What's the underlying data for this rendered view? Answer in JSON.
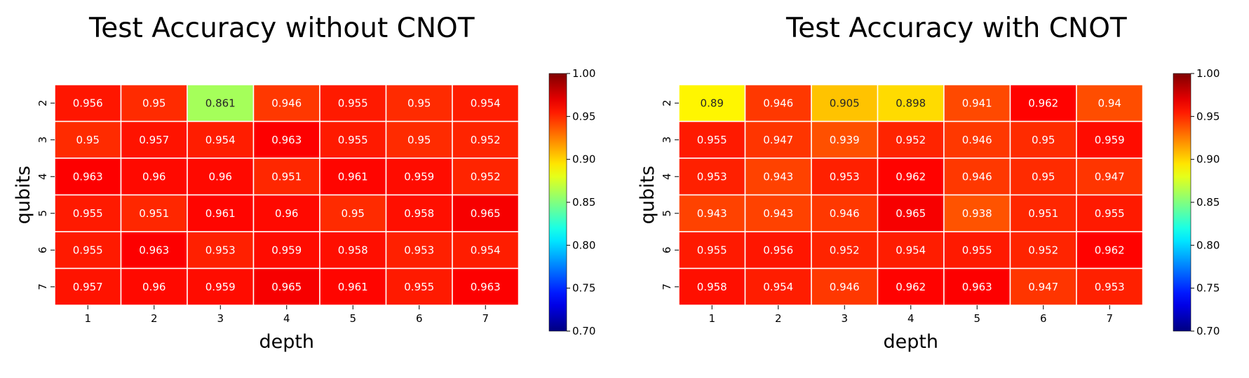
{
  "chart_data": [
    {
      "type": "heatmap",
      "title": "Test Accuracy without CNOT",
      "xlabel": "depth",
      "ylabel": "qubits",
      "x": [
        "1",
        "2",
        "3",
        "4",
        "5",
        "6",
        "7"
      ],
      "y": [
        "2",
        "3",
        "4",
        "5",
        "6",
        "7"
      ],
      "values": [
        [
          0.956,
          0.95,
          0.861,
          0.946,
          0.955,
          0.95,
          0.954
        ],
        [
          0.95,
          0.957,
          0.954,
          0.963,
          0.955,
          0.95,
          0.952
        ],
        [
          0.963,
          0.96,
          0.96,
          0.951,
          0.961,
          0.959,
          0.952
        ],
        [
          0.955,
          0.951,
          0.961,
          0.96,
          0.95,
          0.958,
          0.965
        ],
        [
          0.955,
          0.963,
          0.953,
          0.959,
          0.958,
          0.953,
          0.954
        ],
        [
          0.957,
          0.96,
          0.959,
          0.965,
          0.961,
          0.955,
          0.963
        ]
      ],
      "labels": [
        [
          "0.956",
          "0.95",
          "0.861",
          "0.946",
          "0.955",
          "0.95",
          "0.954"
        ],
        [
          "0.95",
          "0.957",
          "0.954",
          "0.963",
          "0.955",
          "0.95",
          "0.952"
        ],
        [
          "0.963",
          "0.96",
          "0.96",
          "0.951",
          "0.961",
          "0.959",
          "0.952"
        ],
        [
          "0.955",
          "0.951",
          "0.961",
          "0.96",
          "0.95",
          "0.958",
          "0.965"
        ],
        [
          "0.955",
          "0.963",
          "0.953",
          "0.959",
          "0.958",
          "0.953",
          "0.954"
        ],
        [
          "0.957",
          "0.96",
          "0.959",
          "0.965",
          "0.961",
          "0.955",
          "0.963"
        ]
      ],
      "colorbar": {
        "range": [
          0.7,
          1.0
        ],
        "ticks": [
          "0.70",
          "0.75",
          "0.80",
          "0.85",
          "0.90",
          "0.95",
          "1.00"
        ],
        "colormap": "jet"
      }
    },
    {
      "type": "heatmap",
      "title": "Test Accuracy with CNOT",
      "xlabel": "depth",
      "ylabel": "qubits",
      "x": [
        "1",
        "2",
        "3",
        "4",
        "5",
        "6",
        "7"
      ],
      "y": [
        "2",
        "3",
        "4",
        "5",
        "6",
        "7"
      ],
      "values": [
        [
          0.89,
          0.946,
          0.905,
          0.898,
          0.941,
          0.962,
          0.94
        ],
        [
          0.955,
          0.947,
          0.939,
          0.952,
          0.946,
          0.95,
          0.959
        ],
        [
          0.953,
          0.943,
          0.953,
          0.962,
          0.946,
          0.95,
          0.947
        ],
        [
          0.943,
          0.943,
          0.946,
          0.965,
          0.938,
          0.951,
          0.955
        ],
        [
          0.955,
          0.956,
          0.952,
          0.954,
          0.955,
          0.952,
          0.962
        ],
        [
          0.958,
          0.954,
          0.946,
          0.962,
          0.963,
          0.947,
          0.953
        ]
      ],
      "labels": [
        [
          "0.89",
          "0.946",
          "0.905",
          "0.898",
          "0.941",
          "0.962",
          "0.94"
        ],
        [
          "0.955",
          "0.947",
          "0.939",
          "0.952",
          "0.946",
          "0.95",
          "0.959"
        ],
        [
          "0.953",
          "0.943",
          "0.953",
          "0.962",
          "0.946",
          "0.95",
          "0.947"
        ],
        [
          "0.943",
          "0.943",
          "0.946",
          "0.965",
          "0.938",
          "0.951",
          "0.955"
        ],
        [
          "0.955",
          "0.956",
          "0.952",
          "0.954",
          "0.955",
          "0.952",
          "0.962"
        ],
        [
          "0.958",
          "0.954",
          "0.946",
          "0.962",
          "0.963",
          "0.947",
          "0.953"
        ]
      ],
      "colorbar": {
        "range": [
          0.7,
          1.0
        ],
        "ticks": [
          "0.70",
          "0.75",
          "0.80",
          "0.85",
          "0.90",
          "0.95",
          "1.00"
        ],
        "colormap": "jet"
      }
    }
  ]
}
